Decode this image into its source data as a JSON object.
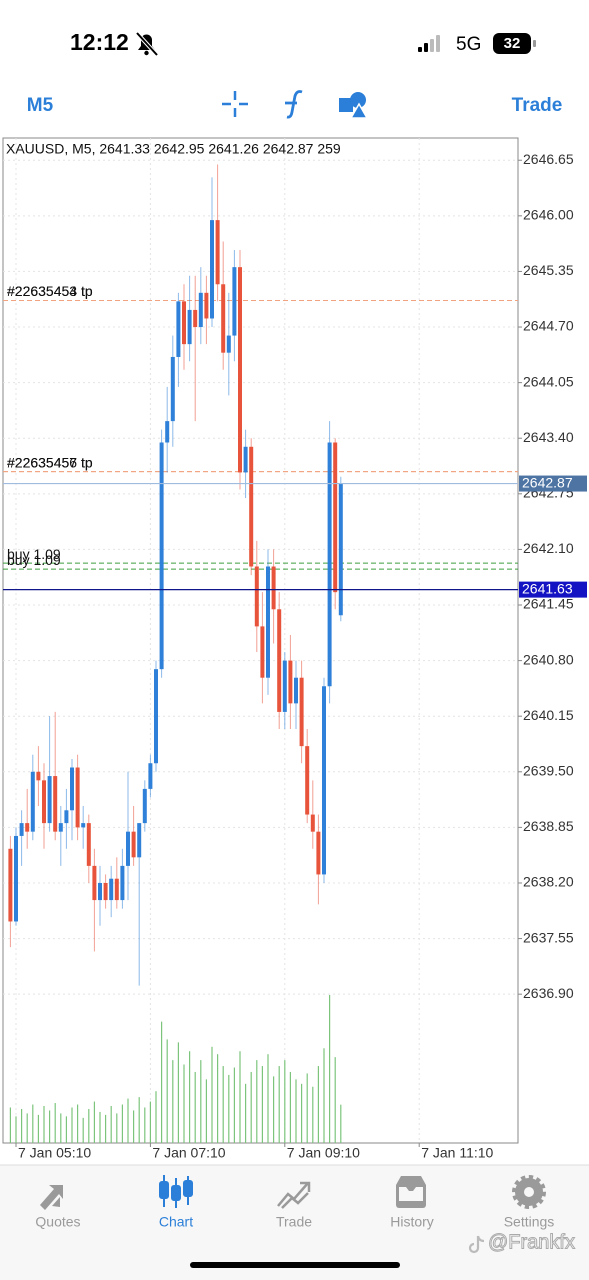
{
  "status_bar": {
    "time": "12:12",
    "network": "5G",
    "battery": "32"
  },
  "toolbar": {
    "timeframe": "M5",
    "trade": "Trade"
  },
  "chart_data": {
    "type": "candlestick",
    "title": "XAUUSD, M5, 2641.33 2642.95 2641.26 2642.87 259",
    "categories": [
      null,
      "7 Jan 05:10",
      null,
      null,
      null,
      null,
      null,
      null,
      null,
      null,
      null,
      null,
      null,
      null,
      null,
      null,
      null,
      null,
      null,
      null,
      null,
      null,
      null,
      null,
      null,
      "7 Jan 07:10",
      null,
      null,
      null,
      null,
      null,
      null,
      null,
      null,
      null,
      null,
      null,
      null,
      null,
      null,
      null,
      null,
      null,
      null,
      null,
      null,
      null,
      null,
      null,
      "7 Jan 09:10",
      null,
      null,
      null,
      null,
      null,
      null,
      null,
      null,
      null,
      null,
      null,
      null,
      null,
      null,
      null,
      null,
      null,
      null,
      null,
      null,
      null,
      null,
      null,
      "7 Jan 11:10"
    ],
    "open": [
      2638.6,
      2637.75,
      2638.75,
      2638.9,
      2638.8,
      2639.5,
      2639.4,
      2638.9,
      2639.45,
      2638.8,
      2638.9,
      2639.05,
      2639.55,
      2638.85,
      2638.9,
      2638.4,
      2638.0,
      2638.2,
      2638.0,
      2638.25,
      2638.0,
      2638.4,
      2638.8,
      2638.5,
      2638.9,
      2639.3,
      2639.6,
      2640.7,
      2643.35,
      2643.6,
      2644.35,
      2645.0,
      2644.5,
      2644.9,
      2644.7,
      2645.1,
      2644.8,
      2645.95,
      2645.2,
      2644.4,
      2644.6,
      2645.4,
      2643.0,
      2643.3,
      2641.9,
      2641.2,
      2640.6,
      2641.9,
      2641.4,
      2640.2,
      2640.8,
      2640.3,
      2640.6,
      2639.8,
      2639.0,
      2638.8,
      2638.3,
      2640.5,
      2643.35,
      2641.33,
      null,
      null,
      null,
      null,
      null,
      null,
      null,
      null,
      null,
      null,
      null,
      null,
      null,
      null
    ],
    "high": [
      2638.75,
      2638.85,
      2639.05,
      2639.3,
      2639.7,
      2639.8,
      2639.6,
      2640.15,
      2640.2,
      2639.1,
      2639.3,
      2639.65,
      2639.7,
      2639.1,
      2639.0,
      2638.6,
      2638.4,
      2638.3,
      2638.4,
      2638.5,
      2638.6,
      2639.5,
      2639.1,
      2638.9,
      2639.4,
      2639.7,
      2640.8,
      2643.5,
      2644.0,
      2644.6,
      2645.1,
      2645.2,
      2645.3,
      2645.3,
      2645.4,
      2645.3,
      2646.45,
      2646.6,
      2645.7,
      2645.1,
      2645.6,
      2645.6,
      2643.5,
      2643.4,
      2642.2,
      2641.6,
      2642.1,
      2642.1,
      2641.6,
      2640.9,
      2641.1,
      2640.8,
      2640.8,
      2640.0,
      2639.4,
      2639.0,
      2640.6,
      2643.6,
      2643.4,
      2642.95,
      null,
      null,
      null,
      null,
      null,
      null,
      null,
      null,
      null,
      null,
      null,
      null,
      null,
      null
    ],
    "low": [
      2637.45,
      2637.7,
      2638.4,
      2638.6,
      2638.7,
      2639.1,
      2638.6,
      2638.8,
      2638.7,
      2638.4,
      2638.6,
      2638.7,
      2638.7,
      2638.6,
      2638.2,
      2637.4,
      2637.7,
      2637.9,
      2637.8,
      2637.9,
      2637.9,
      2638.0,
      2638.4,
      2637.0,
      2638.8,
      2639.2,
      2639.5,
      2640.6,
      2643.0,
      2643.3,
      2644.0,
      2644.2,
      2644.3,
      2643.6,
      2644.5,
      2644.5,
      2644.7,
      2645.0,
      2644.2,
      2643.9,
      2644.3,
      2642.8,
      2642.7,
      2641.8,
      2640.9,
      2640.3,
      2640.4,
      2641.0,
      2640.0,
      2640.0,
      2640.0,
      2640.0,
      2639.6,
      2638.9,
      2638.6,
      2637.95,
      2638.2,
      2640.3,
      2641.4,
      2641.26,
      null,
      null,
      null,
      null,
      null,
      null,
      null,
      null,
      null,
      null,
      null,
      null,
      null,
      null
    ],
    "close": [
      2637.75,
      2638.75,
      2638.9,
      2638.8,
      2639.5,
      2639.4,
      2638.9,
      2639.45,
      2638.8,
      2638.9,
      2639.05,
      2639.55,
      2638.85,
      2638.9,
      2638.4,
      2638.0,
      2638.2,
      2638.0,
      2638.25,
      2638.0,
      2638.4,
      2638.8,
      2638.5,
      2638.9,
      2639.3,
      2639.6,
      2640.7,
      2643.35,
      2643.6,
      2644.35,
      2645.0,
      2644.5,
      2644.9,
      2644.7,
      2645.1,
      2644.8,
      2645.95,
      2645.2,
      2644.4,
      2644.6,
      2645.4,
      2643.0,
      2643.3,
      2641.9,
      2641.2,
      2640.6,
      2641.9,
      2641.4,
      2640.2,
      2640.8,
      2640.3,
      2640.6,
      2639.8,
      2639.0,
      2638.8,
      2638.3,
      2640.5,
      2643.35,
      2641.6,
      2642.87,
      null,
      null,
      null,
      null,
      null,
      null,
      null,
      null,
      null,
      null,
      null,
      null,
      null,
      null
    ],
    "volume": [
      240,
      180,
      230,
      200,
      260,
      190,
      250,
      220,
      270,
      200,
      180,
      240,
      260,
      170,
      230,
      280,
      210,
      190,
      250,
      200,
      260,
      300,
      220,
      310,
      240,
      280,
      350,
      820,
      700,
      560,
      680,
      530,
      620,
      480,
      560,
      430,
      650,
      600,
      520,
      460,
      510,
      620,
      400,
      480,
      560,
      520,
      600,
      450,
      520,
      560,
      480,
      430,
      400,
      470,
      380,
      520,
      640,
      1000,
      580,
      259,
      null,
      null,
      null,
      null,
      null,
      null,
      null,
      null,
      null,
      null,
      null,
      null,
      null,
      null
    ],
    "up_color": "#2f80d8",
    "down_color": "#e8533c",
    "volume_color": "#7cc47c",
    "ylim": [
      2635.16,
      2646.91
    ],
    "yticks": [
      2646.65,
      {
        "value": 2646.0,
        "label": "2646.00"
      },
      2645.35,
      {
        "value": 2644.7,
        "label": "2644.70"
      },
      2644.05,
      {
        "value": 2643.4,
        "label": "2643.40"
      },
      2642.75,
      {
        "value": 2642.1,
        "label": "2642.10"
      },
      2641.45,
      {
        "value": 2640.8,
        "label": "2640.80"
      },
      2640.15,
      {
        "value": 2639.5,
        "label": "2639.50"
      },
      2638.85,
      {
        "value": 2638.2,
        "label": "2638.20"
      },
      2637.55,
      {
        "value": 2636.9,
        "label": "2636.90"
      }
    ],
    "grid": true,
    "order_levels": [
      {
        "label": "#22635453 tp",
        "value": 2645.01,
        "color": "#f2a27e"
      },
      {
        "label": "#22635454 tp",
        "value": 2645.01,
        "color": "#f2a27e"
      },
      {
        "label": "#22635456 tp",
        "value": 2643.01,
        "color": "#f2a27e"
      },
      {
        "label": "#22635457 tp",
        "value": 2643.01,
        "color": "#f2a27e"
      },
      {
        "label": "buy 1.09",
        "value": 2641.94,
        "color": "#3c9d3c"
      },
      {
        "label": "buy 1.09",
        "value": 2641.87,
        "color": "#3c9d3c"
      }
    ],
    "price_lines": [
      {
        "value": 2642.87,
        "color": "#9fbbdd",
        "box": "#4d74a3"
      },
      {
        "value": 2641.63,
        "color": "#10168a",
        "box": "#1313c4"
      }
    ]
  },
  "tabs": [
    "Quotes",
    "Chart",
    "Trade",
    "History",
    "Settings"
  ],
  "watermark": "@Frankfx"
}
